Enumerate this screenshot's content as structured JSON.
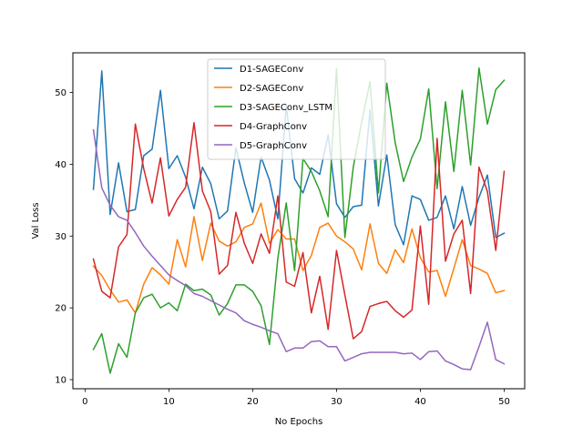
{
  "chart_data": {
    "type": "line",
    "xlabel": "No Epochs",
    "ylabel": "Val Loss",
    "xlim": [
      -1.45,
      52.45
    ],
    "ylim": [
      8.73,
      55.53
    ],
    "x_ticks": [
      0,
      10,
      20,
      30,
      40,
      50
    ],
    "y_ticks": [
      10,
      20,
      30,
      40,
      50
    ],
    "legend_position": "upper center",
    "grid": false,
    "x": [
      1,
      2,
      3,
      4,
      5,
      6,
      7,
      8,
      9,
      10,
      11,
      12,
      13,
      14,
      15,
      16,
      17,
      18,
      19,
      20,
      21,
      22,
      23,
      24,
      25,
      26,
      27,
      28,
      29,
      30,
      31,
      32,
      33,
      34,
      35,
      36,
      37,
      38,
      39,
      40,
      41,
      42,
      43,
      44,
      45,
      46,
      47,
      48,
      49,
      50
    ],
    "series": [
      {
        "name": "D1-SAGEConv",
        "color": "#1f77b4",
        "values": [
          36.5,
          53.0,
          33.0,
          40.2,
          33.4,
          33.7,
          41.2,
          42.1,
          50.3,
          39.4,
          41.2,
          38.2,
          33.8,
          39.6,
          37.3,
          32.4,
          33.5,
          42.3,
          37.4,
          33.3,
          41.0,
          37.8,
          32.4,
          48.2,
          38.0,
          36.0,
          39.5,
          38.6,
          44.1,
          34.5,
          32.6,
          34.1,
          34.3,
          47.6,
          34.2,
          41.3,
          31.6,
          28.8,
          35.6,
          35.1,
          32.2,
          32.6,
          35.6,
          31.0,
          36.9,
          31.5,
          35.4,
          38.5,
          29.8,
          30.4
        ]
      },
      {
        "name": "D2-SAGEConv",
        "color": "#ff7f0e",
        "values": [
          25.8,
          24.5,
          22.5,
          20.8,
          21.1,
          19.3,
          23.3,
          25.6,
          24.6,
          23.3,
          29.5,
          25.7,
          32.7,
          26.6,
          31.8,
          29.3,
          28.6,
          29.2,
          31.2,
          31.7,
          34.6,
          29.0,
          30.9,
          29.6,
          29.6,
          25.2,
          27.3,
          31.2,
          31.8,
          30.0,
          29.2,
          28.2,
          25.3,
          31.7,
          26.2,
          24.8,
          28.1,
          26.3,
          31.0,
          27.0,
          25.0,
          25.2,
          21.6,
          25.5,
          29.5,
          25.9,
          25.4,
          24.8,
          22.1,
          22.4
        ]
      },
      {
        "name": "D3-SAGEConv_LSTM",
        "color": "#2ca02c",
        "values": [
          14.2,
          16.4,
          10.9,
          15.0,
          13.1,
          19.3,
          21.4,
          21.9,
          20.0,
          20.7,
          19.6,
          23.3,
          22.4,
          22.6,
          21.8,
          19.0,
          20.6,
          23.2,
          23.2,
          22.3,
          20.3,
          14.9,
          26.9,
          34.6,
          25.2,
          40.8,
          39.0,
          36.3,
          32.7,
          53.3,
          29.8,
          39.6,
          45.9,
          51.5,
          36.0,
          51.3,
          43.0,
          37.6,
          41.0,
          43.5,
          50.5,
          36.6,
          48.7,
          39.0,
          50.3,
          39.9,
          53.4,
          45.6,
          50.4,
          51.7
        ]
      },
      {
        "name": "D4-GraphConv",
        "color": "#d62728",
        "values": [
          26.8,
          22.3,
          21.4,
          28.5,
          30.2,
          45.6,
          39.4,
          34.6,
          40.9,
          32.8,
          35.1,
          36.8,
          45.8,
          36.3,
          33.4,
          24.7,
          25.9,
          33.3,
          29.0,
          26.2,
          30.3,
          27.6,
          35.6,
          23.6,
          23.0,
          27.7,
          19.3,
          24.4,
          17.0,
          28.0,
          21.8,
          15.7,
          16.7,
          20.2,
          20.6,
          20.9,
          19.6,
          18.7,
          19.7,
          31.4,
          20.5,
          43.6,
          26.5,
          30.3,
          32.2,
          22.0,
          39.6,
          36.2,
          28.0,
          39.0
        ]
      },
      {
        "name": "D5-GraphConv",
        "color": "#9467bd",
        "values": [
          44.8,
          36.7,
          34.3,
          32.7,
          32.2,
          30.5,
          28.6,
          27.2,
          25.9,
          24.6,
          23.8,
          23.1,
          22.0,
          21.6,
          21.0,
          20.4,
          19.8,
          19.3,
          18.2,
          17.7,
          17.3,
          16.8,
          16.4,
          13.9,
          14.4,
          14.4,
          15.3,
          15.4,
          14.6,
          14.6,
          12.6,
          13.1,
          13.6,
          13.8,
          13.8,
          13.8,
          13.8,
          13.6,
          13.7,
          12.8,
          13.9,
          14.0,
          12.6,
          12.1,
          11.5,
          11.4,
          14.6,
          18.0,
          12.8,
          12.2
        ]
      }
    ]
  }
}
